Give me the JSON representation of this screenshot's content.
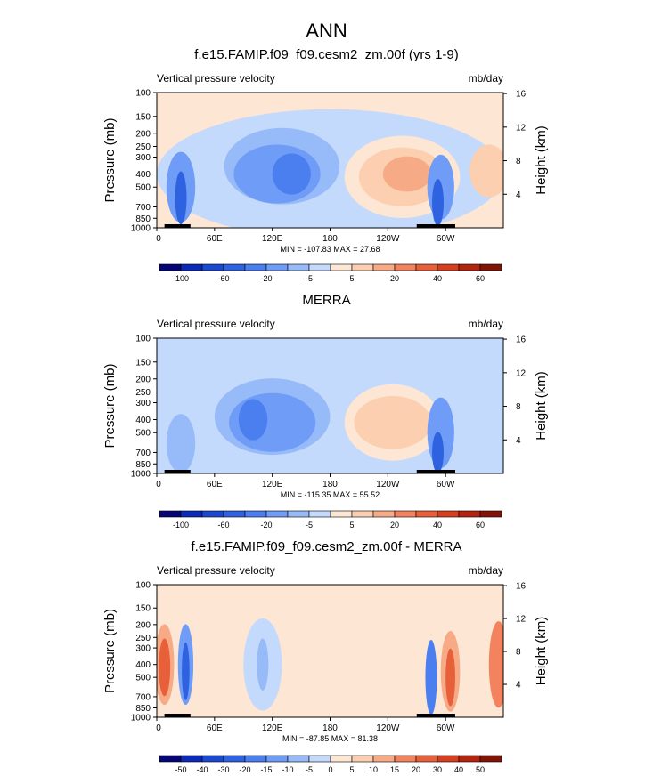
{
  "figure": {
    "title": "ANN"
  },
  "panels": [
    {
      "title": "f.e15.FAMIP.f09_f09.cesm2_zm.00f (yrs 1-9)",
      "variable": "Vertical pressure velocity",
      "units": "mb/day",
      "minmax": "MIN = -107.83  MAX =  27.68",
      "colorbar": "main"
    },
    {
      "title": "MERRA",
      "variable": "Vertical pressure velocity",
      "units": "mb/day",
      "minmax": "MIN = -115.35  MAX =  55.52",
      "colorbar": "main"
    },
    {
      "title": "f.e15.FAMIP.f09_f09.cesm2_zm.00f - MERRA",
      "variable": "Vertical pressure velocity",
      "units": "mb/day",
      "minmax": "MIN = -87.85  MAX =  81.38",
      "colorbar": "diff"
    }
  ],
  "axes": {
    "ylabel_left": "Pressure (mb)",
    "ylabel_right": "Height (km)",
    "pressure_ticks": [
      "100",
      "150",
      "200",
      "250",
      "300",
      "400",
      "500",
      "700",
      "850",
      "1000"
    ],
    "pressure_values": [
      100,
      150,
      200,
      250,
      300,
      400,
      500,
      700,
      850,
      1000
    ],
    "height_ticks": [
      "4",
      "8",
      "12",
      "16"
    ],
    "height_values": [
      4,
      8,
      12,
      16
    ],
    "lon_ticks": [
      "0",
      "60E",
      "120E",
      "180",
      "120W",
      "60W"
    ],
    "lon_values": [
      0,
      60,
      120,
      180,
      240,
      300
    ],
    "lon_range": [
      0,
      360
    ],
    "pressure_range": [
      100,
      1000
    ],
    "yscale": "log"
  },
  "colorbars": {
    "main": {
      "labels": [
        "-100",
        "-60",
        "-20",
        "-5",
        "5",
        "20",
        "40",
        "60"
      ],
      "colors": [
        "#050577",
        "#0b2ab7",
        "#1a49cf",
        "#2f62e0",
        "#4b7ff0",
        "#6e9cf6",
        "#97bbf9",
        "#c4dafc",
        "#fde6d4",
        "#fbcfb0",
        "#f7aa86",
        "#f2835e",
        "#e8603a",
        "#d63f1e",
        "#b42510",
        "#831307"
      ]
    },
    "diff": {
      "labels": [
        "-50",
        "-40",
        "-30",
        "-20",
        "-15",
        "-10",
        "-5",
        "0",
        "5",
        "10",
        "15",
        "20",
        "30",
        "40",
        "50"
      ],
      "colors": [
        "#050577",
        "#0b2ab7",
        "#1a49cf",
        "#2f62e0",
        "#4b7ff0",
        "#6e9cf6",
        "#97bbf9",
        "#c4dafc",
        "#fde6d4",
        "#fbcfb0",
        "#f7aa86",
        "#f2835e",
        "#e8603a",
        "#d63f1e",
        "#b42510",
        "#831307"
      ]
    }
  },
  "chart_data": [
    {
      "type": "heatmap",
      "title": "f.e15.FAMIP.f09_f09.cesm2_zm.00f (yrs 1-9)",
      "xlabel": "",
      "ylabel": "Pressure (mb)",
      "y2label": "Height (km)",
      "xlim": [
        0,
        360
      ],
      "ylim": [
        1000,
        100
      ],
      "min": -107.83,
      "max": 27.68,
      "features": [
        {
          "lon": 25,
          "p": 450,
          "value": -60,
          "sign": "ascent"
        },
        {
          "lon": 100,
          "p": 350,
          "value": -40,
          "sign": "ascent"
        },
        {
          "lon": 140,
          "p": 350,
          "value": -40,
          "sign": "ascent"
        },
        {
          "lon": 255,
          "p": 400,
          "value": 20,
          "sign": "descent"
        },
        {
          "lon": 295,
          "p": 450,
          "value": -60,
          "sign": "ascent"
        },
        {
          "lon": 350,
          "p": 400,
          "value": 15,
          "sign": "descent"
        }
      ]
    },
    {
      "type": "heatmap",
      "title": "MERRA",
      "xlabel": "",
      "ylabel": "Pressure (mb)",
      "y2label": "Height (km)",
      "xlim": [
        0,
        360
      ],
      "ylim": [
        1000,
        100
      ],
      "min": -115.35,
      "max": 55.52,
      "features": [
        {
          "lon": 25,
          "p": 600,
          "value": -30,
          "sign": "ascent"
        },
        {
          "lon": 100,
          "p": 400,
          "value": -40,
          "sign": "ascent"
        },
        {
          "lon": 140,
          "p": 400,
          "value": -40,
          "sign": "ascent"
        },
        {
          "lon": 245,
          "p": 400,
          "value": 15,
          "sign": "descent"
        },
        {
          "lon": 295,
          "p": 450,
          "value": -60,
          "sign": "ascent"
        }
      ]
    },
    {
      "type": "heatmap",
      "title": "f.e15.FAMIP.f09_f09.cesm2_zm.00f - MERRA",
      "xlabel": "",
      "ylabel": "Pressure (mb)",
      "y2label": "Height (km)",
      "xlim": [
        0,
        360
      ],
      "ylim": [
        1000,
        100
      ],
      "min": -87.85,
      "max": 81.38,
      "features": [
        {
          "lon": 8,
          "p": 400,
          "value": 30,
          "sign": "positive"
        },
        {
          "lon": 30,
          "p": 400,
          "value": -30,
          "sign": "negative"
        },
        {
          "lon": 110,
          "p": 400,
          "value": -15,
          "sign": "negative"
        },
        {
          "lon": 285,
          "p": 500,
          "value": -30,
          "sign": "negative"
        },
        {
          "lon": 305,
          "p": 450,
          "value": 30,
          "sign": "positive"
        },
        {
          "lon": 355,
          "p": 400,
          "value": 30,
          "sign": "positive"
        }
      ]
    }
  ]
}
